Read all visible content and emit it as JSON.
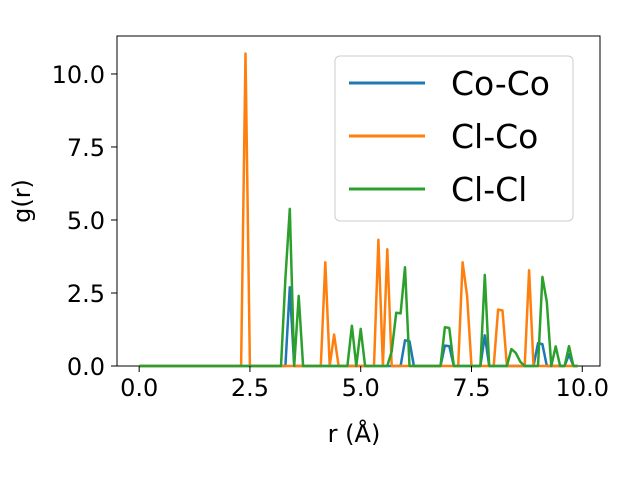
{
  "chart_data": {
    "type": "line",
    "xlabel": "r (Å)",
    "ylabel": "g(r)",
    "xlim": [
      -0.5,
      10.4
    ],
    "ylim": [
      0,
      11.3
    ],
    "xticks": [
      "0.0",
      "2.5",
      "5.0",
      "7.5",
      "10.0"
    ],
    "yticks": [
      "0.0",
      "2.5",
      "5.0",
      "7.5",
      "10.0"
    ],
    "legend_position": "top-right",
    "grid": false,
    "series": [
      {
        "name": "Co-Co",
        "color": "#1f77b4",
        "x": [
          0.0,
          3.2,
          3.3,
          3.4,
          3.5,
          3.6,
          5.8,
          5.9,
          6.0,
          6.1,
          6.2,
          6.8,
          6.9,
          7.0,
          7.1,
          7.7,
          7.8,
          7.9,
          8.9,
          9.0,
          9.1,
          9.2,
          9.3,
          9.6,
          9.7,
          9.8,
          9.9
        ],
        "y": [
          0.0,
          0.0,
          0.0,
          2.7,
          0.0,
          0.0,
          0.0,
          0.0,
          0.88,
          0.85,
          0.0,
          0.0,
          0.7,
          0.68,
          0.0,
          0.0,
          1.05,
          0.0,
          0.0,
          0.78,
          0.75,
          0.0,
          0.0,
          0.0,
          0.4,
          0.0,
          0.0
        ]
      },
      {
        "name": "Cl-Co",
        "color": "#ff7f0e",
        "x": [
          0.0,
          2.3,
          2.4,
          2.5,
          4.1,
          4.2,
          4.3,
          4.4,
          4.5,
          5.3,
          5.4,
          5.5,
          5.6,
          5.7,
          7.2,
          7.3,
          7.4,
          7.5,
          7.9,
          8.0,
          8.1,
          8.2,
          8.3,
          8.7,
          8.8,
          8.9,
          9.9
        ],
        "y": [
          0.0,
          0.0,
          10.7,
          0.0,
          0.0,
          3.55,
          0.0,
          1.08,
          0.0,
          0.0,
          4.32,
          0.0,
          4.0,
          0.0,
          0.0,
          3.55,
          2.4,
          0.0,
          0.0,
          0.0,
          1.93,
          1.9,
          0.0,
          0.0,
          3.28,
          0.0,
          0.0
        ]
      },
      {
        "name": "Cl-Cl",
        "color": "#2ca02c",
        "x": [
          0.0,
          3.2,
          3.3,
          3.4,
          3.5,
          3.6,
          3.7,
          4.7,
          4.8,
          4.9,
          5.0,
          5.1,
          5.6,
          5.7,
          5.8,
          5.9,
          6.0,
          6.1,
          6.2,
          6.8,
          6.9,
          7.0,
          7.1,
          7.7,
          7.8,
          7.9,
          8.3,
          8.4,
          8.5,
          8.6,
          8.7,
          9.0,
          9.1,
          9.2,
          9.3,
          9.4,
          9.5,
          9.6,
          9.7,
          9.8,
          9.9
        ],
        "y": [
          0.0,
          0.0,
          3.0,
          5.38,
          0.0,
          2.4,
          0.0,
          0.0,
          1.38,
          0.0,
          1.27,
          0.0,
          0.0,
          0.5,
          1.82,
          1.8,
          3.38,
          0.0,
          0.0,
          0.0,
          1.33,
          1.3,
          0.0,
          0.0,
          3.12,
          0.0,
          0.0,
          0.58,
          0.45,
          0.15,
          0.0,
          0.0,
          3.05,
          2.2,
          0.0,
          0.67,
          0.0,
          0.0,
          0.68,
          0.0,
          0.0
        ]
      }
    ]
  }
}
